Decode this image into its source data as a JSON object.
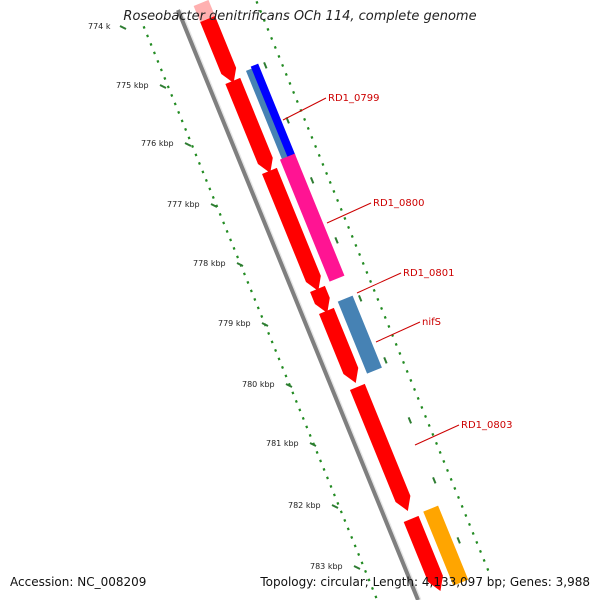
{
  "title": "Roseobacter denitrificans OCh 114, complete genome",
  "footer": {
    "accession": "Accession: NC_008209",
    "topology": "Topology: circular; Length: 4,133,097 bp; Genes: 3,988"
  },
  "ticks": [
    "774 k",
    "775 kbp",
    "776 kbp",
    "777 kbp",
    "778 kbp",
    "779 kbp",
    "780 kbp",
    "781 kbp",
    "782 kbp",
    "783 kbp"
  ],
  "gene_labels": [
    "RD1_0799",
    "RD1_0800",
    "RD1_0801",
    "nifS",
    "RD1_0803"
  ],
  "colors": {
    "cds_forward": "#ff0000",
    "cds_reverse": "#ff0000",
    "cog_blue": "#0000ff",
    "cog_steel": "#4682b4",
    "cog_magenta": "#ff1493",
    "cog_orange": "#ffa500",
    "backbone": "#808080",
    "gc_dots": "#228b22",
    "label": "#cc0000"
  }
}
